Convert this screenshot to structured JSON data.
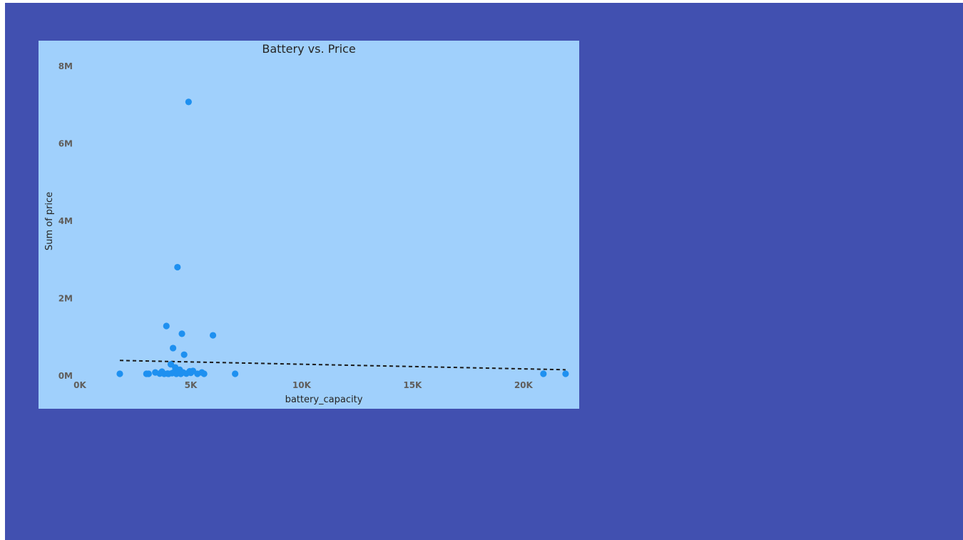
{
  "colors": {
    "page_background": "#4150B0",
    "chart_background": "#A0D0FC",
    "point_fill": "#1E90F0",
    "trend_line": "#1a1a1a"
  },
  "chart_data": {
    "type": "scatter",
    "title": "Battery vs. Price",
    "xlabel": "battery_capacity",
    "ylabel": "Sum of price",
    "xlim": [
      0,
      22000
    ],
    "ylim": [
      0,
      8000000
    ],
    "x_ticks": [
      {
        "value": 0,
        "label": "0K"
      },
      {
        "value": 5000,
        "label": "5K"
      },
      {
        "value": 10000,
        "label": "10K"
      },
      {
        "value": 15000,
        "label": "15K"
      },
      {
        "value": 20000,
        "label": "20K"
      }
    ],
    "y_ticks": [
      {
        "value": 0,
        "label": "0M"
      },
      {
        "value": 2000000,
        "label": "2M"
      },
      {
        "value": 4000000,
        "label": "4M"
      },
      {
        "value": 6000000,
        "label": "6M"
      },
      {
        "value": 8000000,
        "label": "8M"
      }
    ],
    "grid": false,
    "legend": "none",
    "points": [
      {
        "x": 1800,
        "y": 30000
      },
      {
        "x": 3000,
        "y": 15000
      },
      {
        "x": 3100,
        "y": 20000
      },
      {
        "x": 3400,
        "y": 90000
      },
      {
        "x": 3600,
        "y": 60000
      },
      {
        "x": 3700,
        "y": 110000
      },
      {
        "x": 3800,
        "y": 40000
      },
      {
        "x": 3900,
        "y": 1290000
      },
      {
        "x": 3950,
        "y": 60000
      },
      {
        "x": 4000,
        "y": 50000
      },
      {
        "x": 4100,
        "y": 300000
      },
      {
        "x": 4150,
        "y": 70000
      },
      {
        "x": 4200,
        "y": 720000
      },
      {
        "x": 4250,
        "y": 100000
      },
      {
        "x": 4300,
        "y": 220000
      },
      {
        "x": 4350,
        "y": 50000
      },
      {
        "x": 4400,
        "y": 2810000
      },
      {
        "x": 4450,
        "y": 80000
      },
      {
        "x": 4500,
        "y": 160000
      },
      {
        "x": 4550,
        "y": 40000
      },
      {
        "x": 4600,
        "y": 1090000
      },
      {
        "x": 4650,
        "y": 90000
      },
      {
        "x": 4700,
        "y": 550000
      },
      {
        "x": 4800,
        "y": 60000
      },
      {
        "x": 4900,
        "y": 7080000
      },
      {
        "x": 4950,
        "y": 120000
      },
      {
        "x": 5000,
        "y": 80000
      },
      {
        "x": 5100,
        "y": 130000
      },
      {
        "x": 5300,
        "y": 40000
      },
      {
        "x": 5500,
        "y": 90000
      },
      {
        "x": 5600,
        "y": 30000
      },
      {
        "x": 6000,
        "y": 1050000
      },
      {
        "x": 7000,
        "y": 40000
      },
      {
        "x": 20900,
        "y": 30000
      },
      {
        "x": 21900,
        "y": 30000
      }
    ],
    "trend_line": {
      "x": [
        1800,
        21900
      ],
      "y": [
        400000,
        160000
      ]
    }
  }
}
